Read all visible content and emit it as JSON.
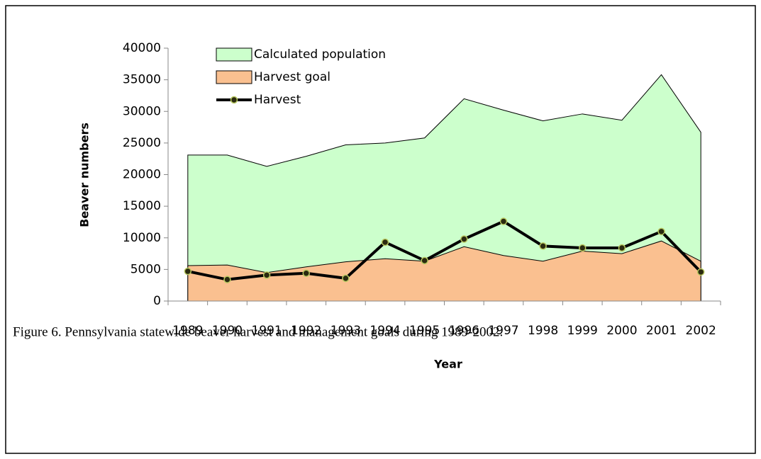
{
  "chart_data": {
    "type": "area",
    "xlabel": "Year",
    "ylabel": "Beaver numbers",
    "caption": "Figure 6.  Pennsylvania statewide beaver harvest and management goals during 1989-2002.",
    "categories": [
      "1989",
      "1990",
      "1991",
      "1992",
      "1993",
      "1994",
      "1995",
      "1996",
      "1997",
      "1998",
      "1999",
      "2000",
      "2001",
      "2002"
    ],
    "series": [
      {
        "name": "Calculated population",
        "type": "area",
        "color": "#ccffcc",
        "values": [
          23100,
          23100,
          21300,
          22900,
          24700,
          25000,
          25800,
          32000,
          30200,
          28500,
          29600,
          28600,
          35800,
          26700
        ]
      },
      {
        "name": "Harvest goal",
        "type": "area",
        "color": "#fac090",
        "values": [
          5600,
          5700,
          4500,
          5400,
          6200,
          6700,
          6300,
          8600,
          7200,
          6300,
          7900,
          7500,
          9500,
          6300
        ]
      },
      {
        "name": "Harvest",
        "type": "line",
        "color": "#000000",
        "values": [
          4700,
          3400,
          4100,
          4400,
          3600,
          9300,
          6400,
          9800,
          12600,
          8700,
          8400,
          8400,
          11000,
          4600
        ]
      }
    ],
    "ylim": [
      0,
      40000
    ],
    "yticks": [
      0,
      5000,
      10000,
      15000,
      20000,
      25000,
      30000,
      35000,
      40000
    ],
    "legend": "upper left"
  }
}
